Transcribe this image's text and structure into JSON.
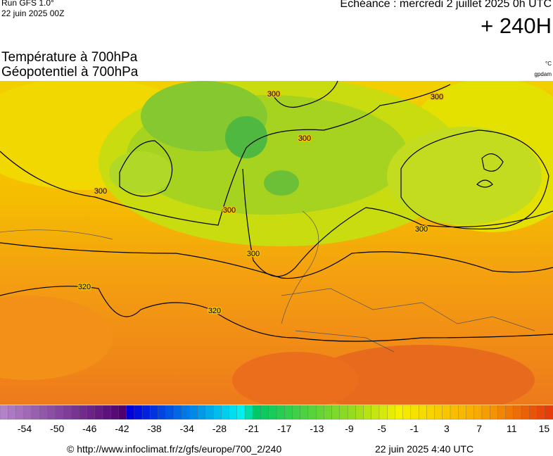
{
  "header": {
    "run": "Run GFS 1.0°",
    "run_date": "22 juin 2025 00Z",
    "echeance": "Echéance : mercredi 2 juillet 2025 0h UTC",
    "lead": "+ 240H"
  },
  "titles": {
    "line1": "Température à 700hPa",
    "line2": "Géopotentiel à 700hPa",
    "unit1": "°C",
    "unit2": "gpdam"
  },
  "map": {
    "contour_labels": [
      "300",
      "300",
      "300",
      "300",
      "300",
      "300",
      "300",
      "320",
      "320"
    ]
  },
  "colorbar": {
    "labels": [
      "-54",
      "-50",
      "-46",
      "-42",
      "-38",
      "-34",
      "-28",
      "-21",
      "-17",
      "-13",
      "-9",
      "-5",
      "-1",
      "3",
      "7",
      "11",
      "15"
    ]
  },
  "footer": {
    "source": "© http://www.infoclimat.fr/z/gfs/europe/700_2/240",
    "timestamp": "22 juin 2025  4:40 UTC"
  }
}
